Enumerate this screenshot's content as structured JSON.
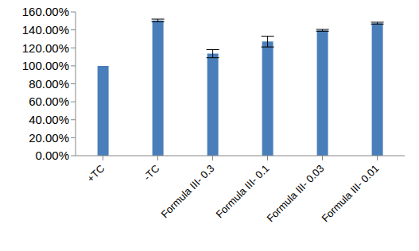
{
  "chart_data": {
    "type": "bar",
    "categories": [
      "+TC",
      "-TC",
      "Formula III- 0.3",
      "Formula III- 0.1",
      "Formula III- 0.03",
      "Formula III- 0.01"
    ],
    "values": [
      100,
      150.5,
      113.5,
      127,
      139.5,
      147.5
    ],
    "errors": [
      0,
      1.5,
      4.5,
      6,
      1,
      1
    ],
    "color": "#4a7ebb",
    "ylim": [
      0,
      160
    ],
    "yticks": [
      {
        "value": 0,
        "label": "0.00%"
      },
      {
        "value": 20,
        "label": "20.00%"
      },
      {
        "value": 40,
        "label": "40.00%"
      },
      {
        "value": 60,
        "label": "60.00%"
      },
      {
        "value": 80,
        "label": "80.00%"
      },
      {
        "value": 100,
        "label": "100.00%"
      },
      {
        "value": 120,
        "label": "120.00%"
      },
      {
        "value": 140,
        "label": "140.00%"
      },
      {
        "value": 160,
        "label": "160.00%"
      }
    ],
    "grid": false
  }
}
